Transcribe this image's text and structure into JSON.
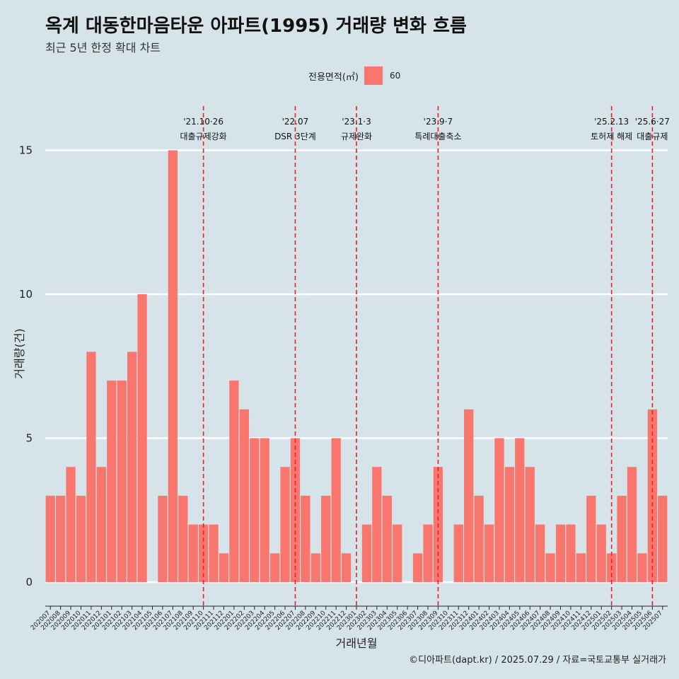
{
  "title": "옥계 대동한마음타운 아파트(1995) 거래량 변화 흐름",
  "subtitle": "최근 5년 한정 확대 차트",
  "legend": {
    "title": "전용면적(㎡)",
    "key": "60",
    "color": "#f8766d"
  },
  "caption": "©디아파트(dapt.kr) / 2025.07.29 / 자료=국토교통부 실거래가",
  "chart_data": {
    "type": "bar",
    "xlabel": "거래년월",
    "ylabel": "거래량(건)",
    "ylim": [
      0,
      15
    ],
    "yticks": [
      0,
      5,
      10,
      15
    ],
    "grid": true,
    "legend_position": "top",
    "bar_color": "#f8766d",
    "categories": [
      "202007",
      "202008",
      "202009",
      "202010",
      "202011",
      "202012",
      "202101",
      "202102",
      "202103",
      "202104",
      "202105",
      "202106",
      "202107",
      "202108",
      "202109",
      "202110",
      "202111",
      "202112",
      "202201",
      "202202",
      "202203",
      "202204",
      "202205",
      "202206",
      "202207",
      "202208",
      "202209",
      "202210",
      "202211",
      "202212",
      "202301",
      "202302",
      "202303",
      "202304",
      "202305",
      "202306",
      "202307",
      "202308",
      "202309",
      "202310",
      "202311",
      "202312",
      "202401",
      "202402",
      "202403",
      "202404",
      "202405",
      "202406",
      "202407",
      "202408",
      "202409",
      "202410",
      "202411",
      "202412",
      "202501",
      "202502",
      "202503",
      "202504",
      "202505",
      "202506",
      "202507"
    ],
    "values": [
      3,
      3,
      4,
      3,
      8,
      4,
      7,
      7,
      8,
      10,
      0,
      3,
      15,
      3,
      2,
      2,
      2,
      1,
      7,
      6,
      5,
      5,
      1,
      4,
      5,
      3,
      1,
      3,
      5,
      1,
      0,
      2,
      4,
      3,
      2,
      0,
      1,
      2,
      4,
      0,
      2,
      6,
      3,
      2,
      5,
      4,
      5,
      4,
      2,
      1,
      2,
      2,
      1,
      3,
      2,
      1,
      3,
      4,
      1,
      6,
      3
    ],
    "annotations": [
      {
        "category": "202110",
        "date": "'21.10·26",
        "label": "대출규제강화"
      },
      {
        "category": "202207",
        "date": "'22.07",
        "label": "DSR 3단계"
      },
      {
        "category": "202301",
        "date": "'23.1·3",
        "label": "규제완화"
      },
      {
        "category": "202309",
        "date": "'23.9·7",
        "label": "특례대출축소"
      },
      {
        "category": "202502",
        "date": "'25.2.13",
        "label": "토허제 해제"
      },
      {
        "category": "202506",
        "date": "'25.6·27",
        "label": "대출규제"
      }
    ]
  }
}
